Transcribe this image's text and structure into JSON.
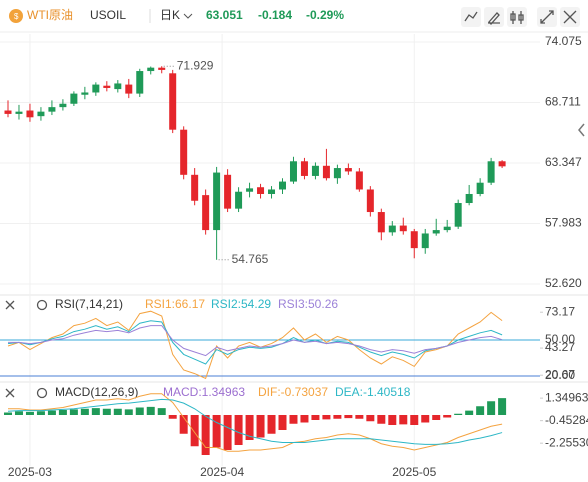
{
  "header": {
    "symbol": "WTI原油",
    "code": "USOIL",
    "period": "日K",
    "price": 63.051,
    "change": -0.184,
    "change_pct": "-0.29%"
  },
  "chart_data": [
    {
      "type": "candlestick",
      "up_color": "#1f9a58",
      "down_color": "#e5262b",
      "ylim": [
        52.62,
        74.075
      ],
      "yticks": [
        74.075,
        68.711,
        63.347,
        57.983,
        {
          "value": 52.62,
          "label": "52.620"
        }
      ],
      "xticks": [
        {
          "value": 2,
          "label": "2025-03"
        },
        {
          "value": 19.5,
          "label": "2025-04"
        },
        {
          "value": 37,
          "label": "2025-05"
        }
      ],
      "open": [
        68.0,
        67.7,
        68.0,
        67.5,
        67.9,
        68.3,
        68.6,
        69.4,
        69.6,
        70.2,
        69.9,
        70.3,
        69.5,
        71.5,
        71.8,
        71.3,
        66.3,
        62.3,
        60.5,
        57.4,
        62.3,
        59.3,
        60.8,
        61.2,
        60.6,
        61.0,
        61.7,
        63.5,
        62.2,
        63.1,
        62.0,
        62.9,
        62.6,
        61.0,
        59.0,
        57.2,
        57.8,
        57.3,
        55.8,
        57.1,
        57.4,
        57.7,
        59.8,
        60.6,
        61.6,
        63.5
      ],
      "close": [
        67.7,
        67.9,
        67.4,
        67.9,
        68.3,
        68.6,
        69.5,
        69.6,
        70.3,
        70.0,
        70.4,
        69.5,
        71.5,
        71.8,
        71.6,
        66.3,
        62.3,
        60.0,
        57.4,
        62.5,
        59.3,
        60.8,
        61.1,
        60.6,
        61.0,
        61.7,
        63.5,
        62.2,
        63.1,
        62.0,
        62.9,
        62.6,
        61.0,
        59.0,
        57.2,
        57.8,
        57.3,
        55.8,
        57.1,
        57.4,
        57.7,
        59.8,
        60.6,
        61.6,
        63.5,
        63.051
      ],
      "high": [
        68.9,
        68.5,
        68.6,
        68.3,
        68.9,
        69.0,
        69.7,
        70.1,
        70.5,
        70.6,
        70.7,
        70.8,
        71.7,
        71.9,
        71.929,
        71.6,
        66.6,
        62.9,
        61.0,
        63.0,
        62.8,
        61.2,
        61.6,
        61.5,
        61.3,
        62.0,
        63.9,
        63.8,
        63.4,
        64.6,
        63.2,
        63.3,
        62.9,
        61.3,
        59.3,
        58.2,
        58.5,
        57.5,
        57.5,
        58.4,
        58.3,
        60.1,
        61.4,
        62.0,
        63.8,
        63.6
      ],
      "low": [
        67.4,
        67.2,
        67.0,
        67.1,
        67.6,
        68.0,
        68.4,
        69.0,
        69.3,
        69.7,
        69.6,
        69.1,
        69.2,
        71.2,
        71.3,
        66.0,
        61.9,
        59.6,
        57.0,
        54.765,
        59.0,
        59.0,
        60.3,
        60.2,
        60.2,
        60.6,
        61.5,
        61.9,
        61.9,
        61.8,
        61.5,
        62.3,
        60.8,
        58.6,
        56.5,
        56.9,
        57.0,
        54.9,
        55.3,
        56.9,
        57.2,
        57.5,
        59.6,
        60.4,
        61.4,
        62.9
      ]
    },
    {
      "type": "line",
      "title": "RSI(7,14,21)",
      "ylim": [
        15,
        85
      ],
      "yticks": [
        73.17,
        43.27,
        20.67
      ],
      "levels": [
        {
          "value": 50,
          "label": "50.00",
          "color": "#3aa9d9"
        },
        {
          "value": 20,
          "label": "20.00",
          "color": "#4a7fd6"
        }
      ],
      "series": [
        {
          "name": "RSI1:66.17",
          "color": "#f4a340",
          "values": [
            45,
            48,
            42,
            47,
            52,
            55,
            62,
            64,
            68,
            62,
            65,
            58,
            72,
            74,
            70,
            38,
            25,
            22,
            18,
            45,
            35,
            45,
            48,
            44,
            47,
            52,
            60,
            50,
            55,
            48,
            53,
            50,
            42,
            35,
            30,
            36,
            33,
            28,
            40,
            42,
            45,
            55,
            60,
            65,
            73,
            66.17
          ]
        },
        {
          "name": "RSI2:54.29",
          "color": "#2db7c6",
          "values": [
            47,
            48,
            46,
            48,
            51,
            53,
            57,
            59,
            62,
            59,
            61,
            57,
            64,
            66,
            65,
            48,
            38,
            34,
            30,
            42,
            38,
            42,
            44,
            43,
            44,
            47,
            52,
            48,
            50,
            47,
            49,
            48,
            44,
            40,
            37,
            40,
            38,
            35,
            41,
            43,
            45,
            50,
            53,
            56,
            58,
            54.29
          ]
        },
        {
          "name": "RSI3:50.26",
          "color": "#9c82d8",
          "values": [
            48,
            48,
            47,
            48,
            50,
            51,
            54,
            56,
            58,
            57,
            58,
            56,
            60,
            62,
            62,
            50,
            43,
            40,
            37,
            44,
            41,
            43,
            45,
            44,
            45,
            47,
            50,
            48,
            49,
            47,
            48,
            47,
            45,
            42,
            40,
            42,
            41,
            39,
            42,
            43,
            45,
            48,
            50,
            52,
            53,
            50.26
          ]
        }
      ]
    },
    {
      "type": "macd",
      "title": "MACD(12,26,9)",
      "ylim": [
        -4,
        2.4
      ],
      "yticks": [
        1.34963,
        -0.45284,
        {
          "value": -2.2553,
          "label": "-2.25530"
        }
      ],
      "up_color": "#1f9a58",
      "down_color": "#e5262b",
      "histogram": {
        "name": "MACD:1.34963",
        "color": "#9c6fd0",
        "values": [
          0.2,
          0.3,
          0.25,
          0.3,
          0.35,
          0.4,
          0.45,
          0.5,
          0.55,
          0.5,
          0.5,
          0.45,
          0.6,
          0.65,
          0.55,
          -0.3,
          -1.5,
          -2.5,
          -3.2,
          -2.6,
          -2.8,
          -2.4,
          -2.0,
          -1.8,
          -1.5,
          -1.2,
          -0.7,
          -0.6,
          -0.4,
          -0.35,
          -0.3,
          -0.25,
          -0.3,
          -0.5,
          -0.7,
          -0.8,
          -0.75,
          -0.8,
          -0.6,
          -0.4,
          -0.2,
          0.1,
          0.35,
          0.7,
          1.1,
          1.34963
        ]
      },
      "series": [
        {
          "name": "DIF:-0.73037",
          "color": "#f4a340",
          "values": [
            0.5,
            0.5,
            0.4,
            0.4,
            0.5,
            0.6,
            0.8,
            1.0,
            1.2,
            1.2,
            1.3,
            1.2,
            1.5,
            1.7,
            1.7,
            1.0,
            -0.2,
            -1.4,
            -2.6,
            -2.6,
            -2.9,
            -2.9,
            -2.8,
            -2.8,
            -2.7,
            -2.6,
            -2.2,
            -2.1,
            -1.9,
            -1.8,
            -1.6,
            -1.5,
            -1.6,
            -1.9,
            -2.3,
            -2.5,
            -2.6,
            -2.8,
            -2.6,
            -2.4,
            -2.2,
            -1.8,
            -1.5,
            -1.2,
            -0.9,
            -0.73037
          ]
        },
        {
          "name": "DEA:-1.40518",
          "color": "#2db7c6",
          "values": [
            0.3,
            0.35,
            0.35,
            0.35,
            0.4,
            0.45,
            0.5,
            0.6,
            0.7,
            0.8,
            0.9,
            0.95,
            1.05,
            1.15,
            1.25,
            1.2,
            0.95,
            0.5,
            -0.1,
            -0.6,
            -1.0,
            -1.4,
            -1.7,
            -1.9,
            -2.1,
            -2.2,
            -2.2,
            -2.2,
            -2.1,
            -2.0,
            -1.9,
            -1.9,
            -1.9,
            -1.9,
            -2.0,
            -2.1,
            -2.2,
            -2.3,
            -2.35,
            -2.35,
            -2.3,
            -2.2,
            -2.0,
            -1.85,
            -1.65,
            -1.40518
          ]
        }
      ]
    }
  ]
}
